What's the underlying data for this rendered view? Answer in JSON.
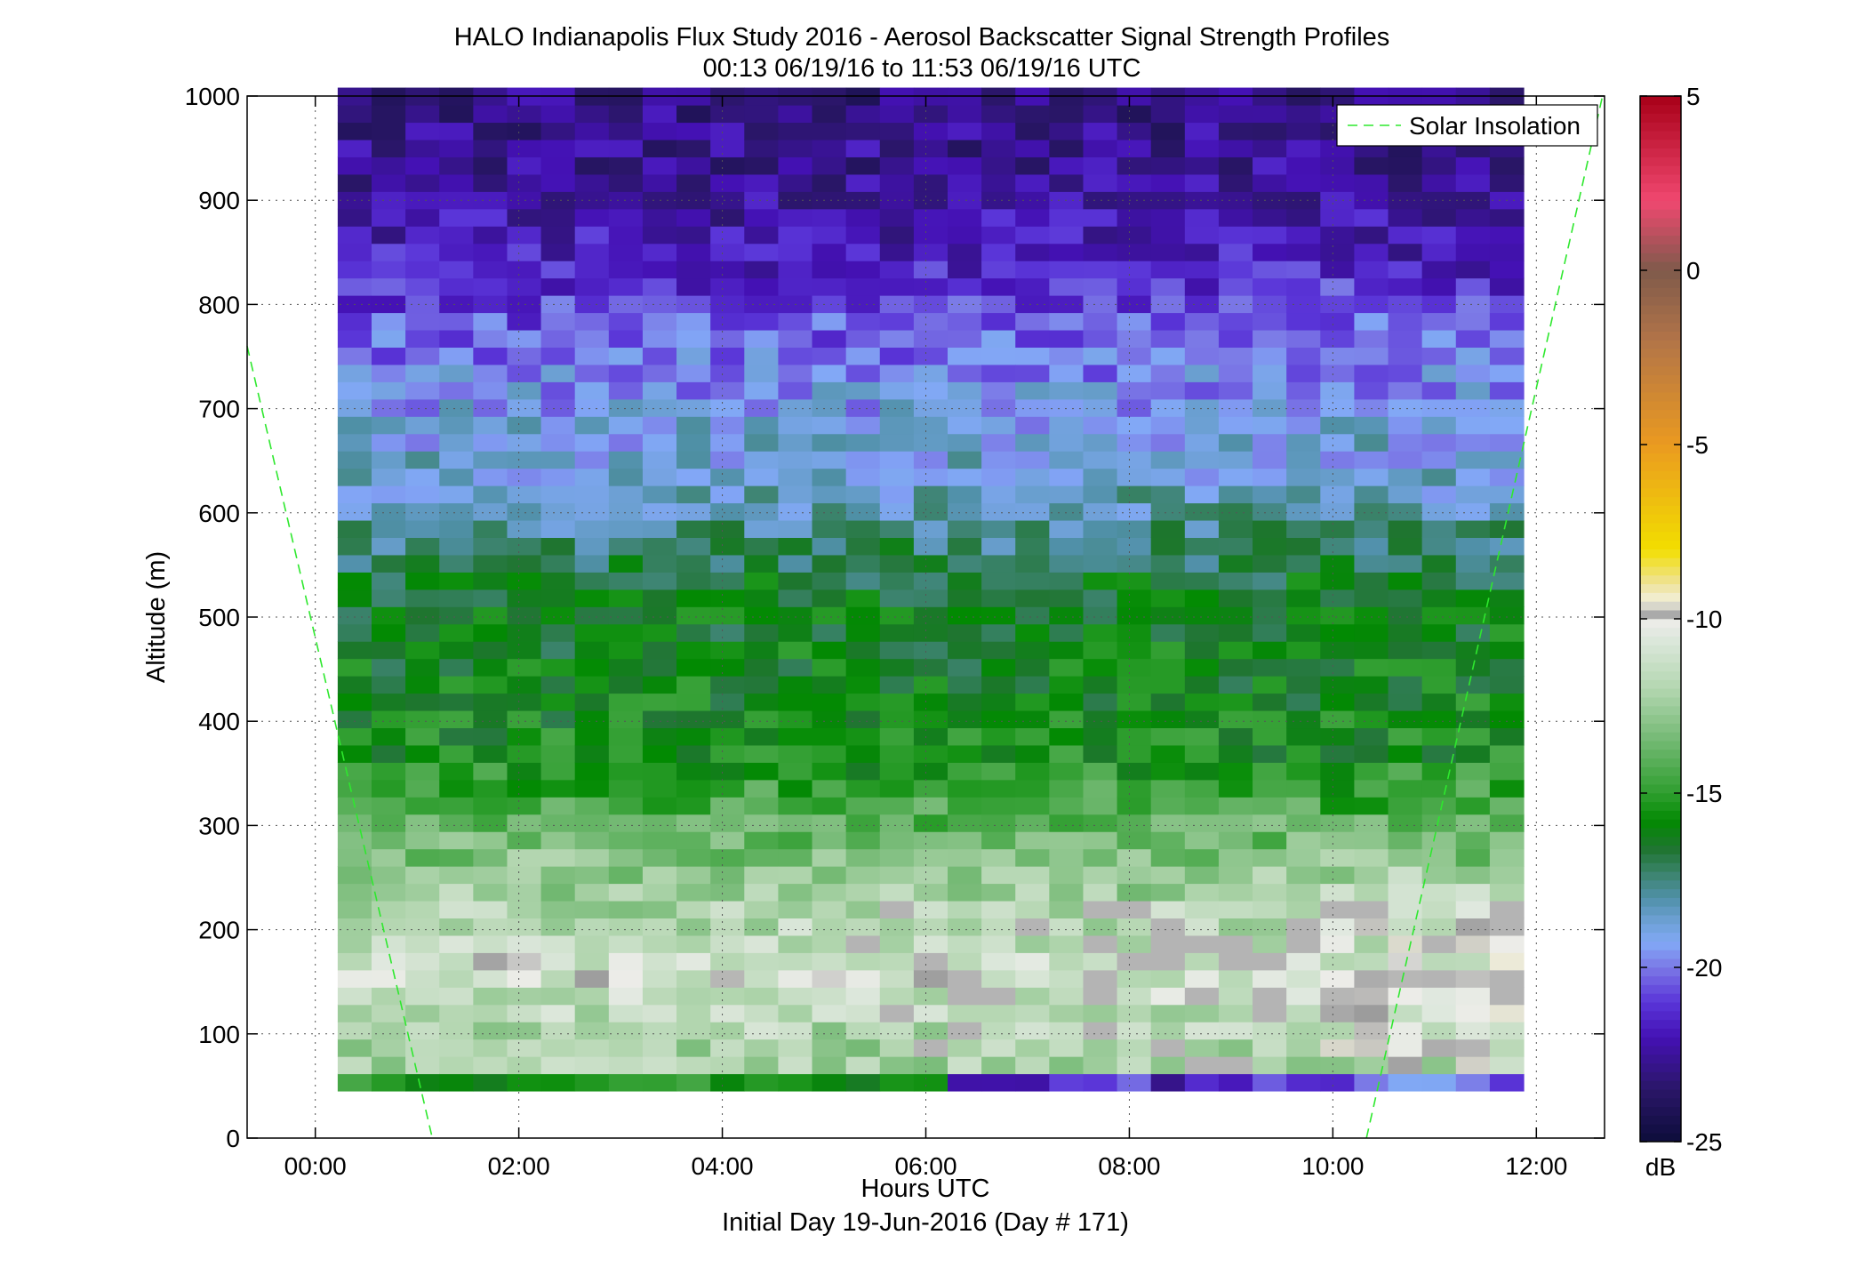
{
  "chart_data": {
    "type": "heatmap",
    "title": "HALO Indianapolis Flux Study 2016 - Aerosol Backscatter Signal Strength Profiles",
    "subtitle": "00:13 06/19/16 to 11:53 06/19/16  UTC",
    "xlabel": "Hours UTC",
    "xlabel2": "Initial Day 19-Jun-2016 (Day # 171)",
    "ylabel": "Altitude (m)",
    "x_ticks": [
      {
        "value": 0,
        "label": "00:00"
      },
      {
        "value": 2,
        "label": "02:00"
      },
      {
        "value": 4,
        "label": "04:00"
      },
      {
        "value": 6,
        "label": "06:00"
      },
      {
        "value": 8,
        "label": "08:00"
      },
      {
        "value": 10,
        "label": "10:00"
      },
      {
        "value": 12,
        "label": "12:00"
      }
    ],
    "y_ticks": [
      0,
      100,
      200,
      300,
      400,
      500,
      600,
      700,
      800,
      900,
      1000
    ],
    "xlim": [
      -0.67,
      12.67
    ],
    "ylim": [
      0,
      1000
    ],
    "grid": "dotted",
    "time_start_hour": 0.22,
    "time_end_hour": 11.88,
    "time_step_hours": 0.333,
    "altitude_start_m": 45,
    "altitude_end_m": 1000,
    "altitude_step_m": 16.6,
    "colorbar": {
      "label": "dB",
      "range": [
        -25,
        5
      ],
      "ticks": [
        5,
        0,
        -5,
        -10,
        -15,
        -20,
        -25
      ],
      "colorscale": [
        [
          -25,
          "#0c0d3a"
        ],
        [
          -23.5,
          "#2a1668"
        ],
        [
          -22,
          "#4411b4"
        ],
        [
          -21,
          "#5a35d8"
        ],
        [
          -20,
          "#7b78e6"
        ],
        [
          -19.3,
          "#82a8f6"
        ],
        [
          -18.6,
          "#6a9fd0"
        ],
        [
          -18,
          "#5090a8"
        ],
        [
          -17.4,
          "#3f8575"
        ],
        [
          -16.6,
          "#1f7530"
        ],
        [
          -15.8,
          "#028a02"
        ],
        [
          -15,
          "#2f9e2f"
        ],
        [
          -13.5,
          "#73b973"
        ],
        [
          -12,
          "#b3d6b0"
        ],
        [
          -10.5,
          "#dfe8de"
        ],
        [
          -10.1,
          "#ecece8"
        ],
        [
          -10,
          "#9a9a9a"
        ],
        [
          -9.8,
          "#b4b4b4"
        ],
        [
          -9.5,
          "#f2f0dc"
        ],
        [
          -9,
          "#eee29a"
        ],
        [
          -8,
          "#f2de00"
        ],
        [
          -5,
          "#ea9a20"
        ],
        [
          -2,
          "#b27448"
        ],
        [
          0,
          "#7f5a4b"
        ],
        [
          2,
          "#f04870"
        ],
        [
          5,
          "#a80018"
        ]
      ]
    },
    "series": [
      {
        "name": "Solar Insolation",
        "style": "green dashed",
        "segments": [
          {
            "x": [
              -0.67,
              1.15
            ],
            "y": [
              760,
              0
            ]
          },
          {
            "x": [
              10.33,
              12.65
            ],
            "y": [
              0,
              1000
            ]
          }
        ]
      }
    ],
    "legend_position": "top-right",
    "missing_value_color": "#b4b4b4"
  }
}
